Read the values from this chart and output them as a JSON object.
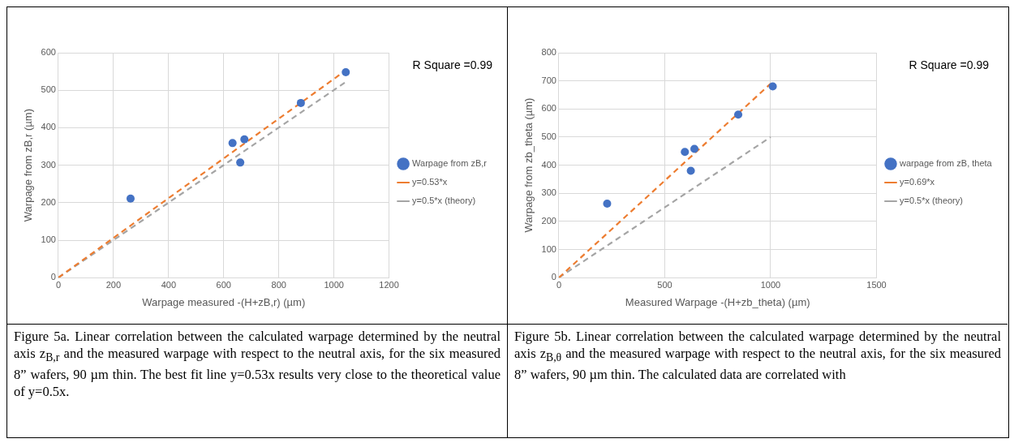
{
  "chart_data": [
    {
      "type": "scatter",
      "xlabel": "Warpage measured -(H+zB,r) (µm)",
      "ylabel": "Warpage from zB,r (µm)",
      "xlim": [
        0,
        1200
      ],
      "xticks": [
        0,
        200,
        400,
        600,
        800,
        1000,
        1200
      ],
      "ylim": [
        0,
        600
      ],
      "yticks": [
        0,
        100,
        200,
        300,
        400,
        500,
        600
      ],
      "grid": true,
      "legend": "right",
      "series": [
        {
          "name": "Warpage from zB,r",
          "type": "scatter",
          "marker": "circle",
          "color": "#4472c4",
          "x": [
            262,
            632,
            660,
            675,
            880,
            1043
          ],
          "values": [
            211,
            359,
            307,
            369,
            466,
            548
          ]
        },
        {
          "name": "y=0.53*x",
          "type": "line",
          "marker": "none",
          "line_style": "dashed",
          "color": "#ed7d31",
          "x": [
            0,
            1043
          ],
          "values": [
            0,
            553
          ]
        },
        {
          "name": "y=0.5*x (theory)",
          "type": "line",
          "marker": "none",
          "line_style": "dashed",
          "color": "#a5a5a5",
          "x": [
            0,
            1043
          ],
          "values": [
            0,
            522
          ]
        }
      ],
      "annotations": [
        "R Square =0.99",
        "Figure 5a. Linear correlation between the calculated warpage determined by the neutral axis z$_{B,r}$ and the measured warpage with respect to the neutral axis, for the six measured 8” wafers, 90 µm thin. The best fit line y=0.53x results very close to the theoretical value of y=0.5x."
      ]
    },
    {
      "type": "scatter",
      "xlabel": "Measured Warpage -(H+zb_theta) (µm)",
      "ylabel": "Warpage from zb_theta (µm)",
      "xlim": [
        0,
        1500
      ],
      "xticks": [
        0,
        500,
        1000,
        1500
      ],
      "ylim": [
        0,
        800
      ],
      "yticks": [
        0,
        100,
        200,
        300,
        400,
        500,
        600,
        700,
        800
      ],
      "grid": true,
      "legend": "right",
      "series": [
        {
          "name": "warpage from zB, theta",
          "type": "scatter",
          "marker": "circle",
          "color": "#4472c4",
          "x": [
            228,
            595,
            623,
            640,
            847,
            1010
          ],
          "values": [
            263,
            447,
            380,
            458,
            580,
            680
          ]
        },
        {
          "name": "y=0.69*x",
          "type": "line",
          "marker": "none",
          "line_style": "dashed",
          "color": "#ed7d31",
          "x": [
            0,
            1000
          ],
          "values": [
            0,
            690
          ]
        },
        {
          "name": "y=0.5*x (theory)",
          "type": "line",
          "marker": "none",
          "line_style": "dashed",
          "color": "#a5a5a5",
          "x": [
            0,
            1000
          ],
          "values": [
            0,
            500
          ]
        }
      ],
      "annotations": [
        "R Square =0.99",
        "Figure 5b. Linear correlation between the calculated warpage determined by the neutral axis z$_{B,θ}$ and the measured warpage with respect to the neutral axis, for the six measured 8” wafers, 90 µm thin. The calculated data are correlated with"
      ]
    }
  ]
}
